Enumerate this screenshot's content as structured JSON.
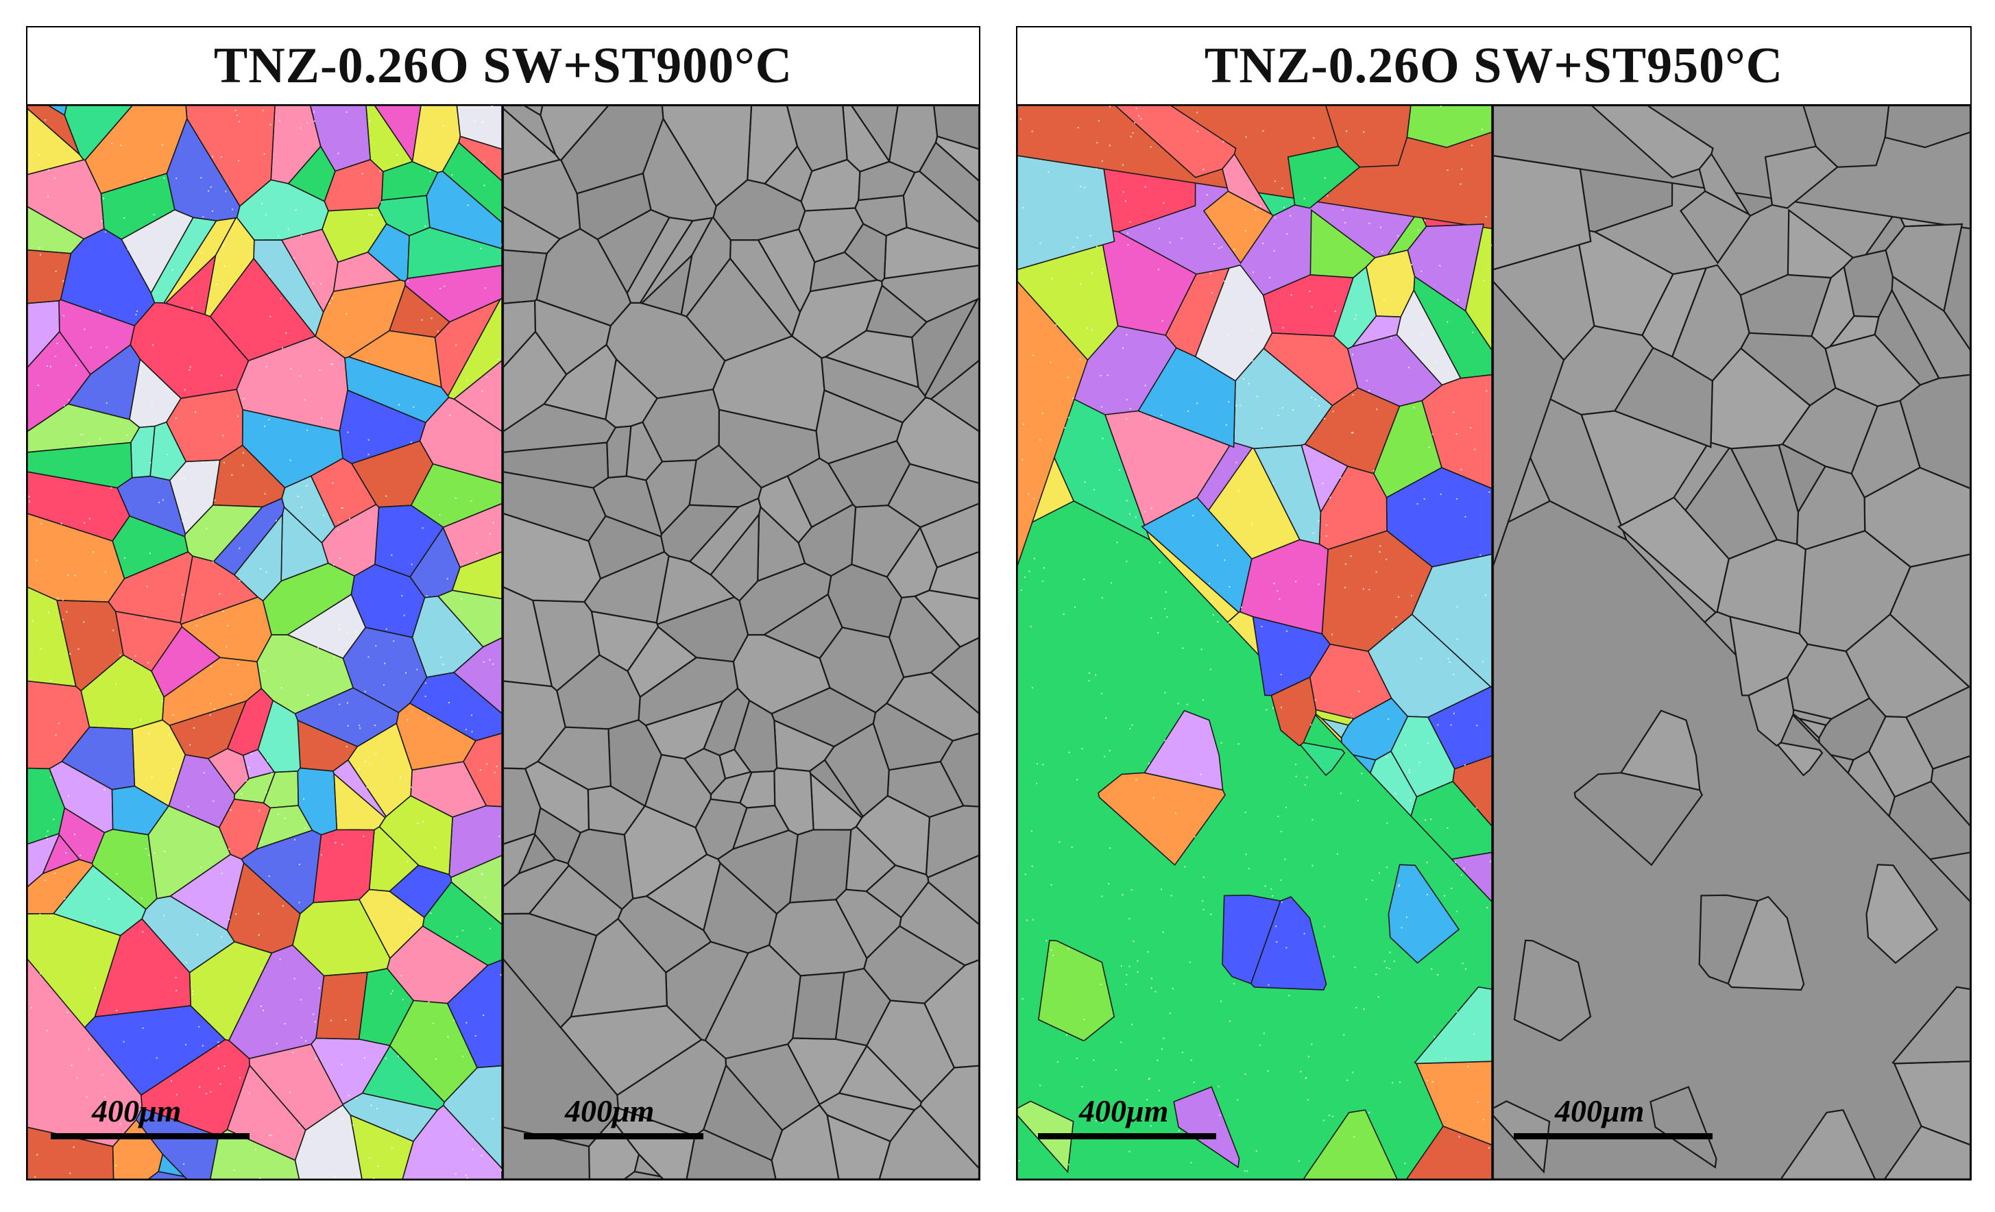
{
  "figures": [
    {
      "title": "TNZ-0.26O SW+ST900°C",
      "left_scale_label": "400μm",
      "right_scale_label": "400μm"
    },
    {
      "title": "TNZ-0.26O SW+ST950°C",
      "left_scale_label": "400μm",
      "right_scale_label": "400μm"
    }
  ],
  "colors": {
    "border": "#000000",
    "gray_background": "#9a9a9a",
    "grain_boundary": "#1a1a1a",
    "ipf_palette": [
      "#ff4a6e",
      "#35e08a",
      "#7fe84c",
      "#c17cf0",
      "#3fb6f2",
      "#ff9a4a",
      "#f25cc8",
      "#5b6ef0",
      "#f7e85a",
      "#2bd86b",
      "#ff6b6b",
      "#8fd8e8",
      "#d9a0ff",
      "#a8f070",
      "#e8e8f0",
      "#ff8fb0",
      "#4a5cff",
      "#e06040",
      "#70f0c8",
      "#c8f040"
    ]
  },
  "image_description_icons": {
    "ipf_map": "ebsd-ipf-map-icon",
    "boundary_map": "grain-boundary-map-icon"
  }
}
